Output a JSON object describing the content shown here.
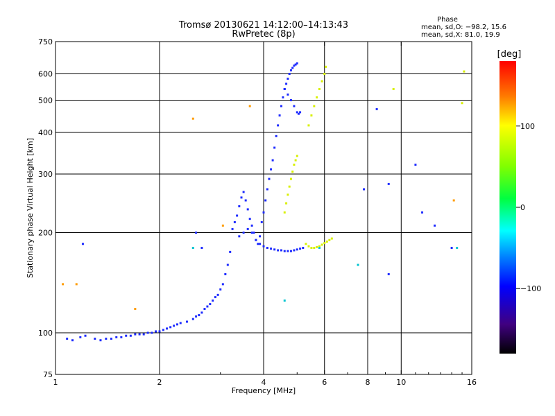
{
  "chart_data": {
    "type": "scatter",
    "title": "Tromsø 20130621 14:12:00–14:13:43",
    "subtitle": "RwPretec (8p)",
    "xlabel": "Frequency [MHz]",
    "ylabel": "Stationary phase Virtual Height [km]",
    "x_scale": "log",
    "y_scale": "log",
    "xlim": [
      1,
      16
    ],
    "ylim": [
      75,
      750
    ],
    "x_ticks": [
      1,
      2,
      4,
      6,
      8,
      10,
      16
    ],
    "x_tick_labels": [
      "1",
      "2",
      "4",
      "6",
      "8",
      "10",
      "16"
    ],
    "y_ticks": [
      75,
      100,
      200,
      300,
      400,
      500,
      600,
      750
    ],
    "y_tick_labels": [
      "75",
      "100",
      "200",
      "300",
      "400",
      "500",
      "600",
      "750"
    ],
    "x_gridlines": [
      2,
      4,
      6,
      8,
      10
    ],
    "y_gridlines": [
      100,
      200,
      300,
      400,
      500,
      600
    ],
    "grid": true,
    "phase_info": {
      "heading": "Phase",
      "line_o": "mean, sd,O: −98.2, 15.6",
      "line_x": "mean, sd,X:  81.0, 19.9"
    },
    "colorbar": {
      "label": "[deg]",
      "range": [
        -180,
        180
      ],
      "ticks": [
        100,
        0,
        -100
      ],
      "tick_labels": [
        "100",
        "0",
        "−100"
      ]
    },
    "series": [
      {
        "mode": "O",
        "phase_deg": -98,
        "color": "#1e2cff",
        "points": [
          [
            1.08,
            96
          ],
          [
            1.12,
            95
          ],
          [
            1.18,
            97
          ],
          [
            1.22,
            98
          ],
          [
            1.3,
            96
          ],
          [
            1.35,
            95
          ],
          [
            1.4,
            96
          ],
          [
            1.45,
            96
          ],
          [
            1.5,
            97
          ],
          [
            1.55,
            97
          ],
          [
            1.6,
            98
          ],
          [
            1.65,
            98
          ],
          [
            1.7,
            99
          ],
          [
            1.75,
            99
          ],
          [
            1.8,
            99
          ],
          [
            1.85,
            100
          ],
          [
            1.9,
            100
          ],
          [
            1.95,
            101
          ],
          [
            2.0,
            101
          ],
          [
            2.05,
            102
          ],
          [
            2.1,
            103
          ],
          [
            2.15,
            104
          ],
          [
            2.2,
            105
          ],
          [
            2.25,
            106
          ],
          [
            2.3,
            107
          ],
          [
            2.4,
            108
          ],
          [
            2.5,
            110
          ],
          [
            2.55,
            112
          ],
          [
            2.6,
            113
          ],
          [
            2.65,
            115
          ],
          [
            2.7,
            118
          ],
          [
            2.75,
            120
          ],
          [
            2.8,
            122
          ],
          [
            2.85,
            125
          ],
          [
            2.9,
            128
          ],
          [
            2.95,
            130
          ],
          [
            3.0,
            135
          ],
          [
            3.05,
            140
          ],
          [
            3.1,
            150
          ],
          [
            3.15,
            160
          ],
          [
            3.2,
            175
          ],
          [
            3.25,
            205
          ],
          [
            3.3,
            215
          ],
          [
            3.35,
            225
          ],
          [
            3.4,
            240
          ],
          [
            3.45,
            255
          ],
          [
            3.5,
            265
          ],
          [
            3.55,
            250
          ],
          [
            3.6,
            235
          ],
          [
            3.65,
            220
          ],
          [
            3.7,
            210
          ],
          [
            3.75,
            200
          ],
          [
            3.8,
            190
          ],
          [
            3.85,
            185
          ],
          [
            3.9,
            195
          ],
          [
            3.95,
            215
          ],
          [
            4.0,
            230
          ],
          [
            4.05,
            250
          ],
          [
            4.1,
            270
          ],
          [
            4.15,
            290
          ],
          [
            4.2,
            310
          ],
          [
            4.25,
            330
          ],
          [
            4.3,
            360
          ],
          [
            4.35,
            390
          ],
          [
            4.4,
            420
          ],
          [
            4.45,
            450
          ],
          [
            4.5,
            480
          ],
          [
            4.55,
            510
          ],
          [
            4.6,
            540
          ],
          [
            4.65,
            560
          ],
          [
            4.7,
            580
          ],
          [
            4.75,
            600
          ],
          [
            4.8,
            615
          ],
          [
            4.85,
            625
          ],
          [
            4.9,
            635
          ],
          [
            4.95,
            640
          ],
          [
            5.0,
            645
          ],
          [
            4.6,
            540
          ],
          [
            4.7,
            520
          ],
          [
            4.8,
            500
          ],
          [
            4.9,
            480
          ],
          [
            5.0,
            460
          ],
          [
            5.05,
            455
          ],
          [
            5.1,
            460
          ],
          [
            3.4,
            195
          ],
          [
            3.5,
            200
          ],
          [
            3.6,
            205
          ],
          [
            3.7,
            200
          ],
          [
            3.8,
            190
          ],
          [
            3.9,
            185
          ],
          [
            4.0,
            182
          ],
          [
            4.1,
            180
          ],
          [
            4.2,
            179
          ],
          [
            4.3,
            178
          ],
          [
            4.4,
            177
          ],
          [
            4.5,
            177
          ],
          [
            4.6,
            176
          ],
          [
            4.7,
            176
          ],
          [
            4.8,
            176
          ],
          [
            4.9,
            177
          ],
          [
            5.0,
            178
          ],
          [
            5.1,
            179
          ],
          [
            5.2,
            180
          ],
          [
            1.2,
            185
          ],
          [
            2.55,
            200
          ],
          [
            2.65,
            180
          ],
          [
            9.2,
            150
          ],
          [
            8.5,
            470
          ],
          [
            9.2,
            280
          ],
          [
            11.0,
            320
          ],
          [
            12.5,
            210
          ],
          [
            14.0,
            180
          ],
          [
            7.8,
            270
          ],
          [
            11.5,
            230
          ]
        ]
      },
      {
        "mode": "X",
        "phase_deg": 81,
        "color": "#d8f000",
        "points": [
          [
            4.6,
            230
          ],
          [
            4.65,
            245
          ],
          [
            4.7,
            260
          ],
          [
            4.75,
            275
          ],
          [
            4.8,
            290
          ],
          [
            4.85,
            305
          ],
          [
            4.9,
            320
          ],
          [
            4.95,
            330
          ],
          [
            5.0,
            340
          ],
          [
            5.4,
            420
          ],
          [
            5.5,
            450
          ],
          [
            5.6,
            480
          ],
          [
            5.7,
            510
          ],
          [
            5.8,
            540
          ],
          [
            5.9,
            570
          ],
          [
            6.0,
            600
          ],
          [
            6.05,
            630
          ],
          [
            5.3,
            185
          ],
          [
            5.4,
            182
          ],
          [
            5.5,
            180
          ],
          [
            5.6,
            180
          ],
          [
            5.7,
            181
          ],
          [
            5.8,
            182
          ],
          [
            5.9,
            184
          ],
          [
            6.0,
            186
          ],
          [
            6.1,
            188
          ],
          [
            6.2,
            190
          ],
          [
            6.3,
            192
          ],
          [
            15.2,
            610
          ],
          [
            15.0,
            490
          ],
          [
            9.5,
            540
          ]
        ]
      },
      {
        "mode": "other",
        "phase_deg": 50,
        "color": "#ff9c00",
        "points": [
          [
            1.05,
            140
          ],
          [
            1.15,
            140
          ],
          [
            1.7,
            118
          ],
          [
            2.5,
            440
          ],
          [
            3.05,
            210
          ],
          [
            3.65,
            480
          ],
          [
            14.2,
            250
          ]
        ]
      },
      {
        "mode": "other",
        "phase_deg": -40,
        "color": "#00c4d0",
        "points": [
          [
            2.5,
            180
          ],
          [
            4.6,
            125
          ],
          [
            5.8,
            180
          ],
          [
            7.5,
            160
          ],
          [
            14.5,
            180
          ]
        ]
      }
    ]
  }
}
